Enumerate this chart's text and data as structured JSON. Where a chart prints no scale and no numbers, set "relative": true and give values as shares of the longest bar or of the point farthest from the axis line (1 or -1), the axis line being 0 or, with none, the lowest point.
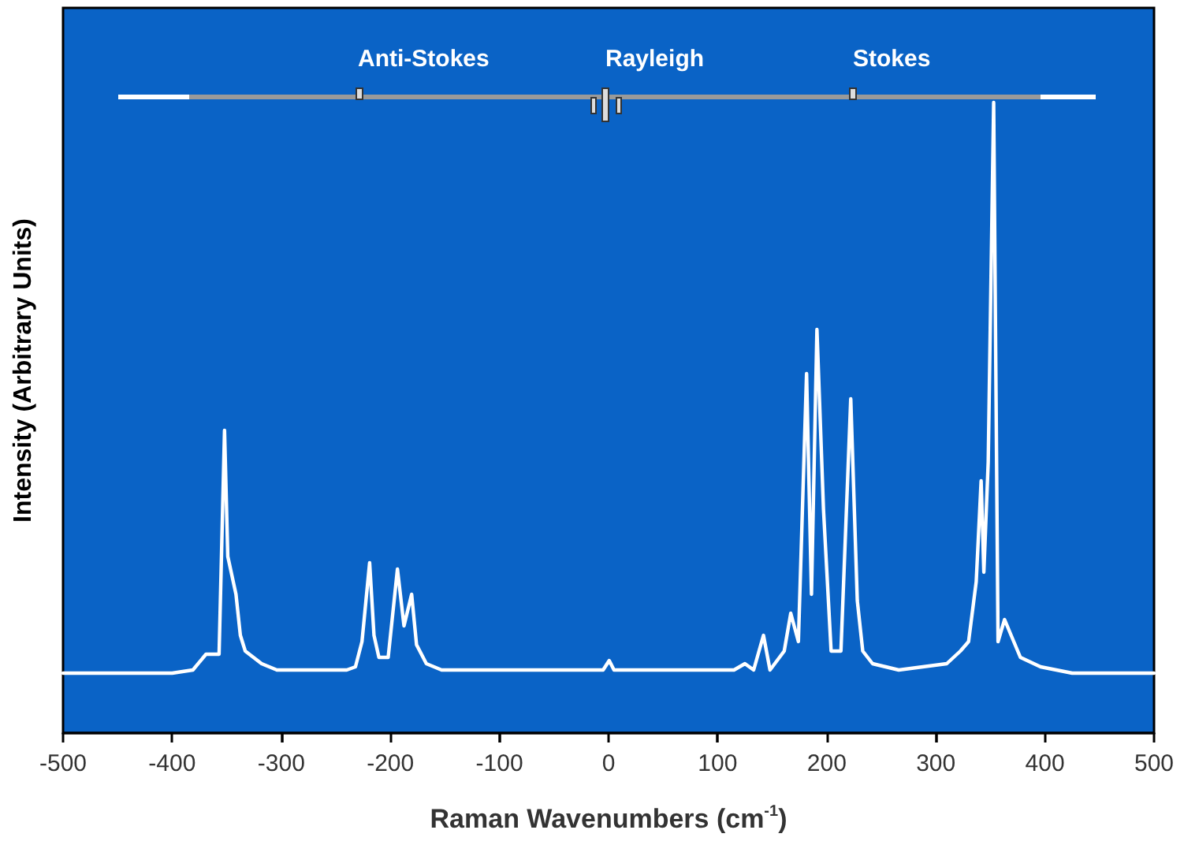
{
  "chart_data": {
    "type": "line",
    "relative": true,
    "xlabel": "Raman Wavenumbers (cm$^{-1}$)",
    "ylabel": "Intensity (Arbitrary Units)",
    "annotations": [
      "Anti-Stokes",
      "Rayleigh",
      "Stokes"
    ],
    "xlim": [
      -500,
      500
    ],
    "xticks": [
      -500,
      -400,
      -300,
      -200,
      -100,
      0,
      100,
      200,
      300,
      400,
      500
    ],
    "grid": false,
    "marker": "none",
    "line_style": "solid",
    "series": [
      {
        "color": "#ffffff",
        "x": [
          -500,
          -400,
          -381,
          -369,
          -357,
          -352,
          -349,
          -341.5,
          -337.5,
          -333,
          -318,
          -304,
          -240,
          -232,
          -226,
          -219,
          -215,
          -210.5,
          -202,
          -193.5,
          -187.5,
          -180.5,
          -176,
          -167,
          -153,
          -5,
          0.6,
          5,
          115,
          125,
          133,
          142,
          148,
          161,
          167,
          174,
          181.5,
          186,
          191,
          197,
          204,
          213,
          222,
          228,
          233,
          242,
          266,
          310,
          322.5,
          330,
          337,
          341.5,
          344,
          348,
          353,
          357,
          363,
          369,
          377.5,
          396,
          425,
          500
        ],
        "values": [
          0.095,
          0.095,
          0.1,
          0.125,
          0.125,
          0.48,
          0.28,
          0.22,
          0.155,
          0.13,
          0.11,
          0.1,
          0.1,
          0.105,
          0.145,
          0.27,
          0.155,
          0.12,
          0.12,
          0.26,
          0.17,
          0.22,
          0.14,
          0.11,
          0.1,
          0.1,
          0.115,
          0.1,
          0.1,
          0.11,
          0.1,
          0.155,
          0.1,
          0.13,
          0.19,
          0.145,
          0.57,
          0.22,
          0.64,
          0.355,
          0.13,
          0.13,
          0.53,
          0.21,
          0.13,
          0.11,
          0.1,
          0.11,
          0.13,
          0.145,
          0.24,
          0.4,
          0.255,
          0.43,
          1.0,
          0.145,
          0.18,
          0.155,
          0.12,
          0.105,
          0.095,
          0.095
        ]
      }
    ]
  }
}
